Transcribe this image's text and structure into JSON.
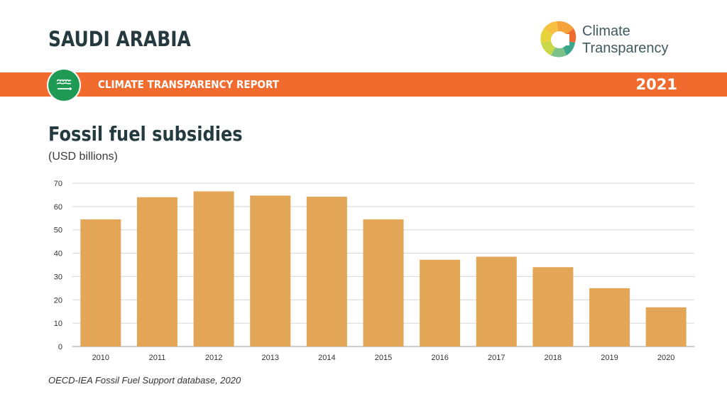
{
  "header": {
    "country": "SAUDI ARABIA",
    "report_title": "CLIMATE TRANSPARENCY REPORT",
    "year": "2021",
    "logo_line1": "Climate",
    "logo_line2": "Transparency"
  },
  "colors": {
    "band": "#f26b2e",
    "bar": "#e3a656",
    "flag": "#1f9a55"
  },
  "chart_data": {
    "type": "bar",
    "title": "Fossil fuel subsidies",
    "subtitle": "(USD billions)",
    "categories": [
      "2010",
      "2011",
      "2012",
      "2013",
      "2014",
      "2015",
      "2016",
      "2017",
      "2018",
      "2019",
      "2020"
    ],
    "values": [
      54.5,
      64,
      66.5,
      64.7,
      64.2,
      54.5,
      37.2,
      38.5,
      34,
      25,
      16.8
    ],
    "ylim": [
      0,
      70
    ],
    "yticks": [
      "0",
      "10",
      "20",
      "30",
      "40",
      "50",
      "60",
      "70"
    ],
    "grid": true,
    "legend": "none"
  },
  "source": "OECD-IEA Fossil Fuel Support database, 2020"
}
